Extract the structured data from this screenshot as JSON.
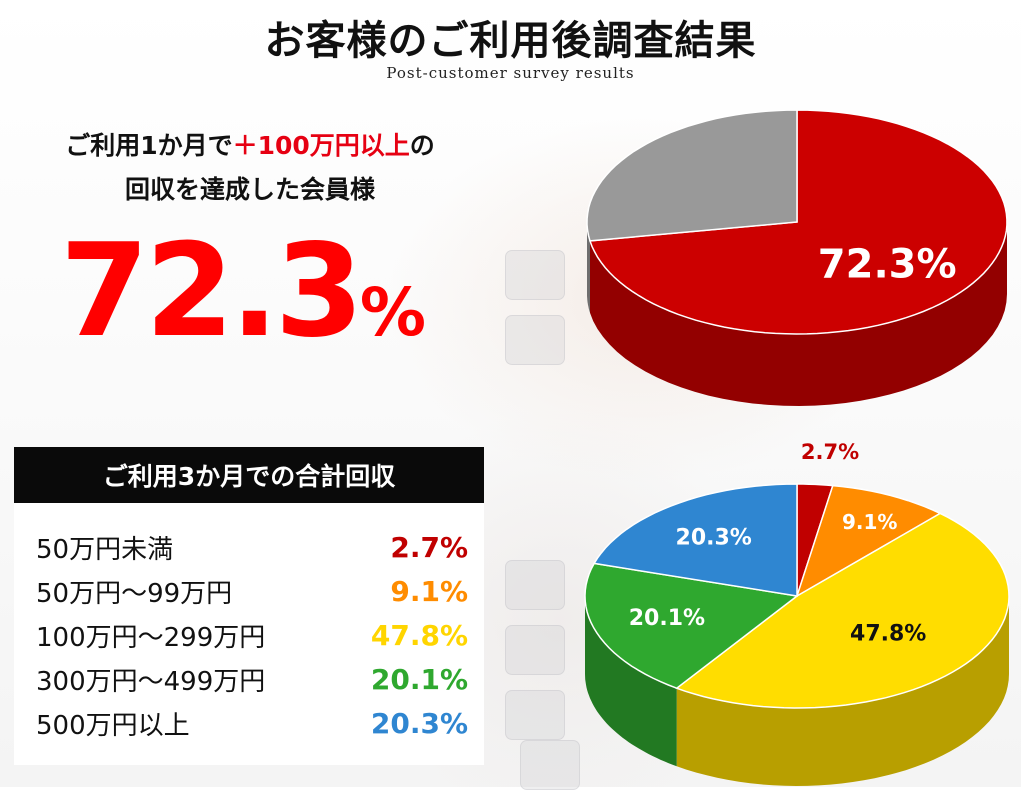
{
  "title": "お客様のご利用後調査結果",
  "subtitle": "Post-customer survey results",
  "headline": {
    "line1_prefix": "ご利用1か月で",
    "line1_highlight": "＋100万円以上",
    "line1_suffix": "の",
    "line2": "回収を達成した会員様"
  },
  "big_value": {
    "number": "72.3",
    "unit": "%"
  },
  "panel": {
    "title": "ご利用3か月での合計回収",
    "rows": [
      {
        "label": "50万円未満",
        "value": "2.7%",
        "color": "#c00000"
      },
      {
        "label": "50万円～99万円",
        "value": "9.1%",
        "color": "#ff8c00"
      },
      {
        "label": "100万円～299万円",
        "value": "47.8%",
        "color": "#ffd500"
      },
      {
        "label": "300万円～499万円",
        "value": "20.1%",
        "color": "#2fa82f"
      },
      {
        "label": "500万円以上",
        "value": "20.3%",
        "color": "#2f86d1"
      }
    ]
  },
  "chart_data": [
    {
      "type": "pie",
      "slices": [
        {
          "value": 72.3,
          "label": "72.3%",
          "color": "#cc0000"
        },
        {
          "value": 27.7,
          "label": "",
          "color": "#999999"
        }
      ]
    },
    {
      "type": "pie",
      "slices": [
        {
          "value": 2.7,
          "label": "2.7%",
          "color": "#c00000"
        },
        {
          "value": 9.1,
          "label": "9.1%",
          "color": "#ff8c00"
        },
        {
          "value": 47.8,
          "label": "47.8%",
          "color": "#ffdd00"
        },
        {
          "value": 20.1,
          "label": "20.1%",
          "color": "#2fa82f"
        },
        {
          "value": 20.3,
          "label": "20.3%",
          "color": "#2f86d1"
        }
      ]
    }
  ]
}
